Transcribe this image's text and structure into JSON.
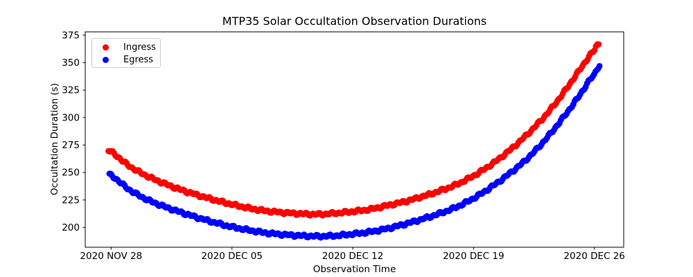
{
  "chart_data": {
    "type": "scatter",
    "title": "MTP35 Solar Occultation Observation Durations",
    "xlabel": "Observation Time",
    "ylabel": "Occultation Duration (s)",
    "x_axis": {
      "unit": "days since 2020 NOV 28",
      "tick_days": [
        0,
        7,
        14,
        21,
        28
      ],
      "tick_labels": [
        "2020 NOV 28",
        "2020 DEC 05",
        "2020 DEC 12",
        "2020 DEC 19",
        "2020 DEC 26"
      ],
      "xlim_days": [
        -1.5,
        29.7
      ]
    },
    "y_axis": {
      "ticks": [
        200,
        225,
        250,
        275,
        300,
        325,
        350,
        375
      ],
      "ylim": [
        182,
        378
      ]
    },
    "grid": false,
    "legend_position": "upper-left",
    "marker": "circle",
    "point_step_days": 0.08,
    "noise_amplitude_s": 1.2,
    "series": [
      {
        "name": "Ingress",
        "color": "#ff0000",
        "points": [
          [
            -0.15,
            270
          ],
          [
            1,
            256.5
          ],
          [
            2,
            247.5
          ],
          [
            3,
            240.5
          ],
          [
            4,
            234.5
          ],
          [
            5,
            229.5
          ],
          [
            6,
            225
          ],
          [
            7,
            221
          ],
          [
            8,
            217.5
          ],
          [
            9,
            215
          ],
          [
            10,
            213.5
          ],
          [
            11,
            212.5
          ],
          [
            12,
            212
          ],
          [
            13,
            213
          ],
          [
            14,
            214.5
          ],
          [
            15,
            216.5
          ],
          [
            16,
            220
          ],
          [
            17,
            223.5
          ],
          [
            18,
            228
          ],
          [
            19,
            233
          ],
          [
            20,
            239
          ],
          [
            21,
            247
          ],
          [
            22,
            257
          ],
          [
            23,
            269
          ],
          [
            24,
            283
          ],
          [
            25,
            299
          ],
          [
            26,
            318
          ],
          [
            27,
            340
          ],
          [
            28,
            361
          ],
          [
            28.3,
            368
          ]
        ]
      },
      {
        "name": "Egress",
        "color": "#0000ff",
        "points": [
          [
            -0.1,
            248
          ],
          [
            1,
            235
          ],
          [
            2,
            226
          ],
          [
            3,
            219.5
          ],
          [
            4,
            214
          ],
          [
            5,
            209
          ],
          [
            6,
            204.5
          ],
          [
            7,
            200.5
          ],
          [
            8,
            197.5
          ],
          [
            9,
            195
          ],
          [
            10,
            193.5
          ],
          [
            11,
            192.5
          ],
          [
            12,
            192
          ],
          [
            13,
            192.5
          ],
          [
            14,
            194
          ],
          [
            15,
            196
          ],
          [
            16,
            199
          ],
          [
            17,
            203
          ],
          [
            18,
            207.5
          ],
          [
            19,
            212.5
          ],
          [
            20,
            218.5
          ],
          [
            21,
            226.5
          ],
          [
            22,
            236.5
          ],
          [
            23,
            248
          ],
          [
            24,
            261
          ],
          [
            25,
            277
          ],
          [
            26,
            296
          ],
          [
            27,
            317
          ],
          [
            28,
            339
          ],
          [
            28.3,
            347
          ]
        ]
      }
    ]
  }
}
